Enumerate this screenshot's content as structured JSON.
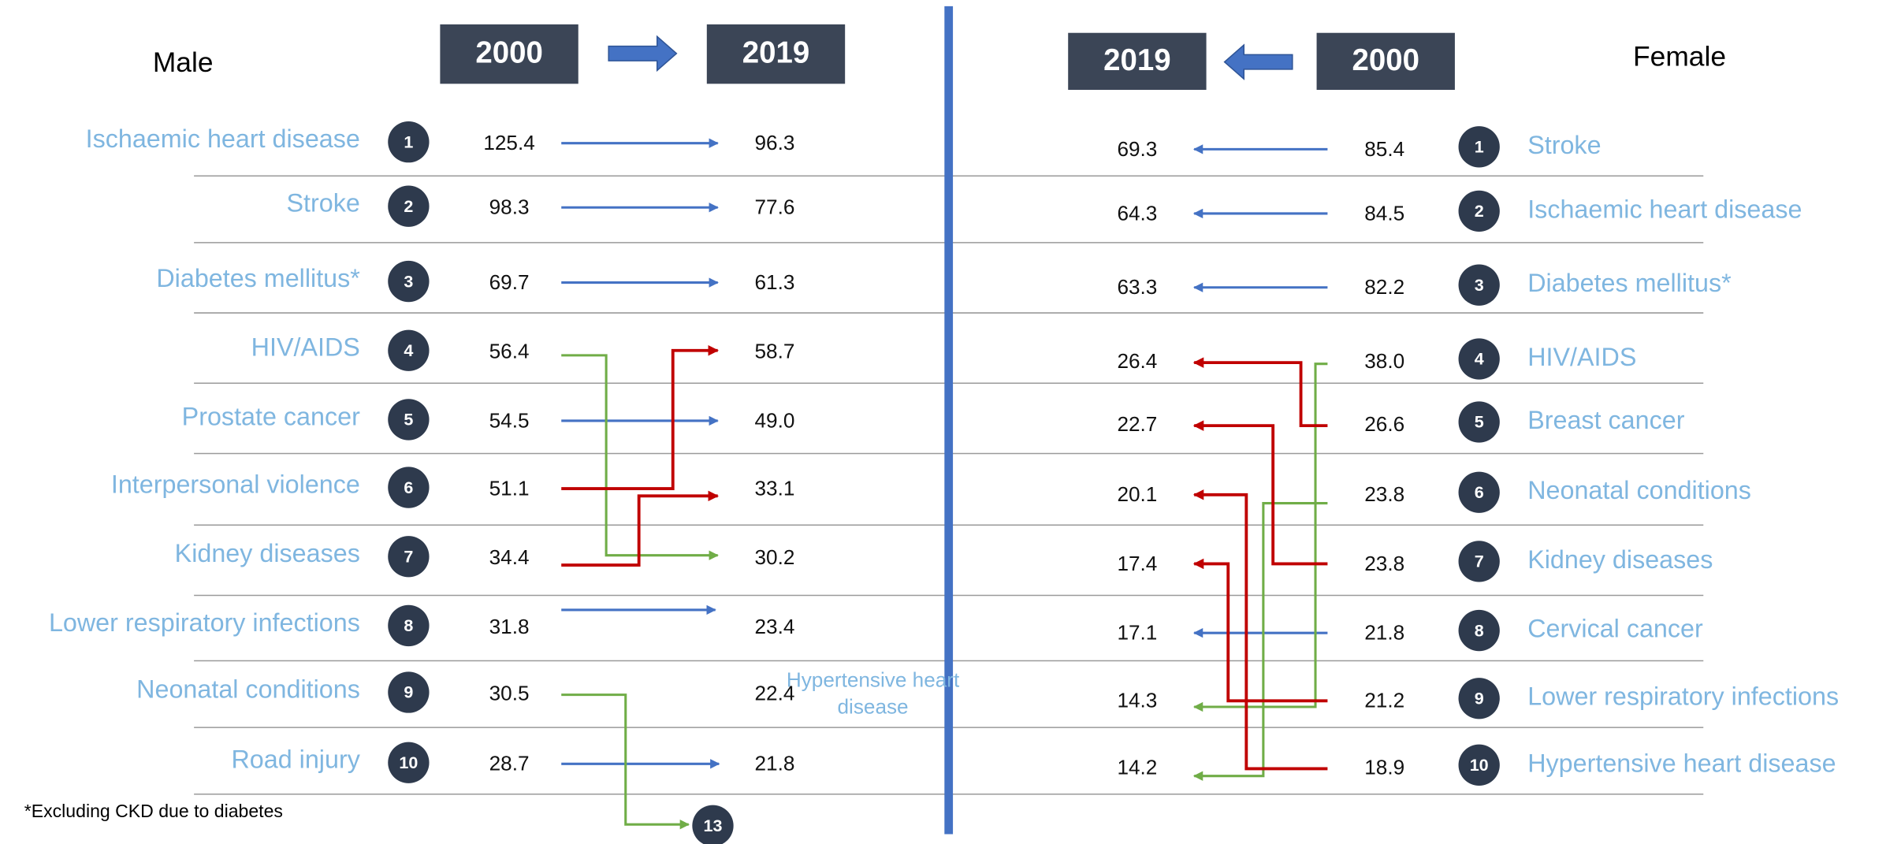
{
  "male": {
    "label": "Male",
    "year_from": "2000",
    "year_to": "2019",
    "rows": [
      {
        "rank": "1",
        "cause": "Ischaemic heart disease",
        "v2000": "125.4",
        "v2019": "96.3"
      },
      {
        "rank": "2",
        "cause": "Stroke",
        "v2000": "98.3",
        "v2019": "77.6"
      },
      {
        "rank": "3",
        "cause": "Diabetes mellitus*",
        "v2000": "69.7",
        "v2019": "61.3"
      },
      {
        "rank": "4",
        "cause": "HIV/AIDS",
        "v2000": "56.4",
        "v2019": "58.7"
      },
      {
        "rank": "5",
        "cause": "Prostate cancer",
        "v2000": "54.5",
        "v2019": "49.0"
      },
      {
        "rank": "6",
        "cause": "Interpersonal violence",
        "v2000": "51.1",
        "v2019": "33.1"
      },
      {
        "rank": "7",
        "cause": "Kidney diseases",
        "v2000": "34.4",
        "v2019": "30.2"
      },
      {
        "rank": "8",
        "cause": "Lower respiratory infections",
        "v2000": "31.8",
        "v2019": "23.4"
      },
      {
        "rank": "9",
        "cause": "Neonatal conditions",
        "v2000": "30.5",
        "v2019": "22.4"
      },
      {
        "rank": "10",
        "cause": "Road injury",
        "v2000": "28.7",
        "v2019": "21.8"
      }
    ],
    "new_entry": "Hypertensive heart disease",
    "dropped_rank": "13"
  },
  "female": {
    "label": "Female",
    "year_from": "2000",
    "year_to": "2019",
    "rows": [
      {
        "rank": "1",
        "cause": "Stroke",
        "v2000": "85.4",
        "v2019": "69.3"
      },
      {
        "rank": "2",
        "cause": "Ischaemic heart disease",
        "v2000": "84.5",
        "v2019": "64.3"
      },
      {
        "rank": "3",
        "cause": "Diabetes mellitus*",
        "v2000": "82.2",
        "v2019": "63.3"
      },
      {
        "rank": "4",
        "cause": "HIV/AIDS",
        "v2000": "38.0",
        "v2019": "26.4"
      },
      {
        "rank": "5",
        "cause": "Breast cancer",
        "v2000": "26.6",
        "v2019": "22.7"
      },
      {
        "rank": "6",
        "cause": "Neonatal conditions",
        "v2000": "23.8",
        "v2019": "20.1"
      },
      {
        "rank": "7",
        "cause": "Kidney diseases",
        "v2000": "23.8",
        "v2019": "17.4"
      },
      {
        "rank": "8",
        "cause": "Cervical cancer",
        "v2000": "21.8",
        "v2019": "17.1"
      },
      {
        "rank": "9",
        "cause": "Lower respiratory infections",
        "v2000": "21.2",
        "v2019": "14.3"
      },
      {
        "rank": "10",
        "cause": "Hypertensive heart disease",
        "v2000": "18.9",
        "v2019": "14.2"
      }
    ]
  },
  "footnote": "*Excluding CKD due to diabetes"
}
